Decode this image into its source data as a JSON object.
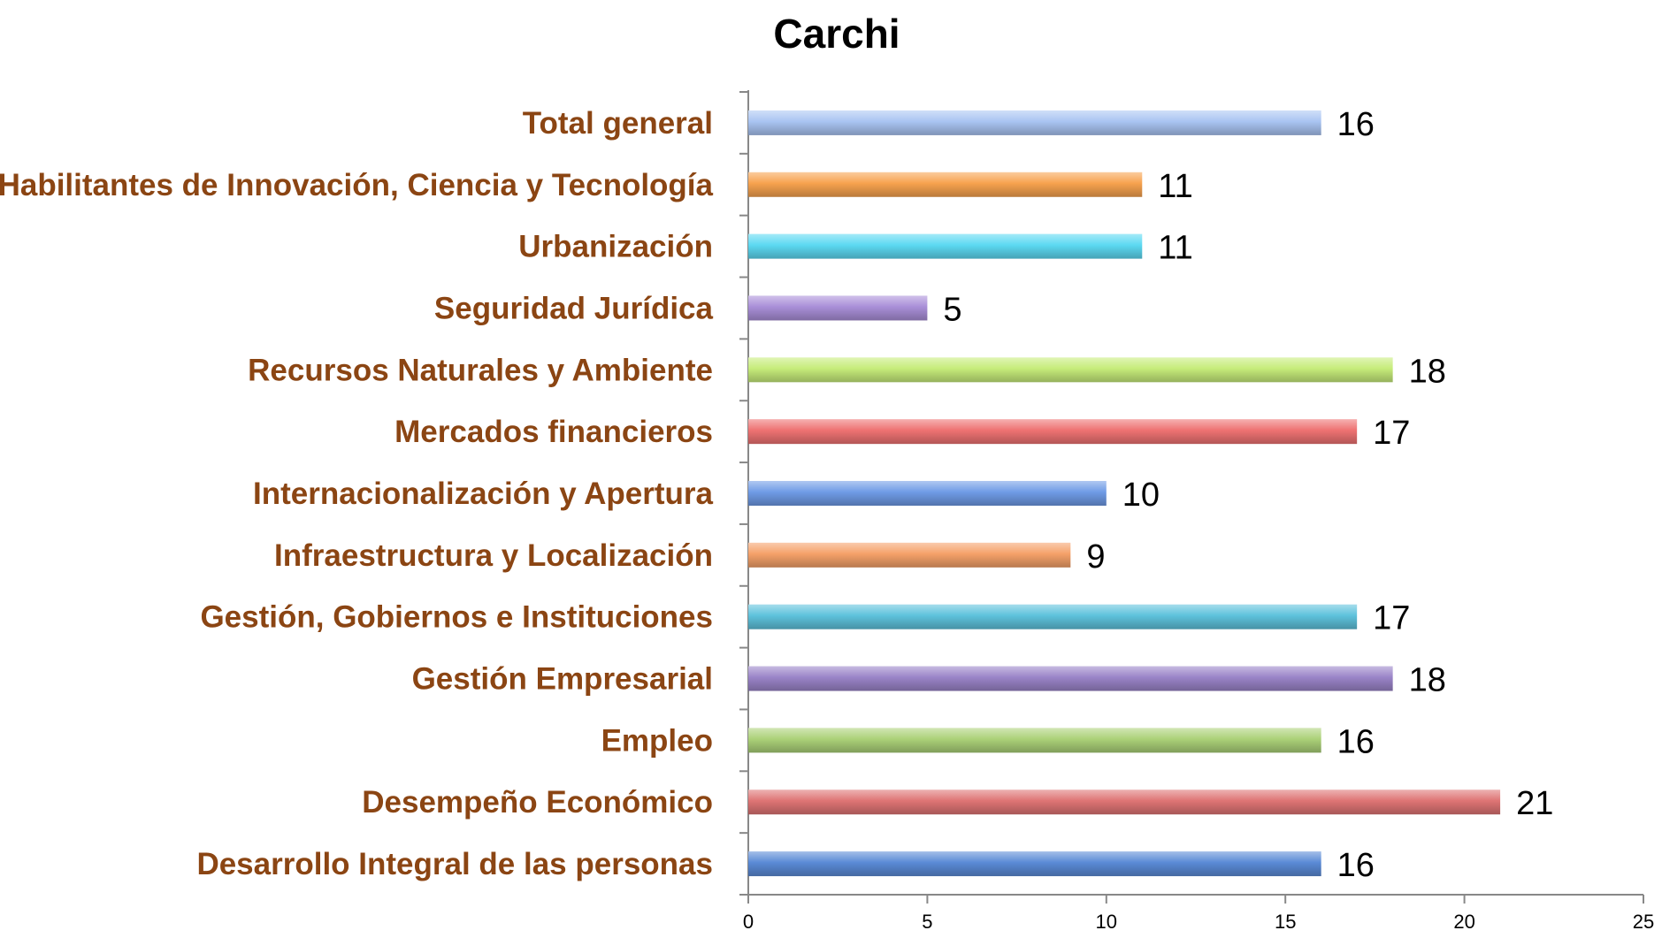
{
  "chart_data": {
    "type": "bar",
    "orientation": "horizontal",
    "title": "Carchi",
    "xlabel": "",
    "ylabel": "",
    "xlim": [
      0,
      25
    ],
    "x_ticks": [
      0,
      5,
      10,
      15,
      20,
      25
    ],
    "grid": false,
    "legend": "none",
    "categories": [
      "Total general",
      "Habilitantes de Innovación, Ciencia y Tecnología",
      "Urbanización",
      "Seguridad Jurídica",
      "Recursos Naturales y Ambiente",
      "Mercados financieros",
      "Internacionalización y Apertura",
      "Infraestructura y Localización",
      "Gestión, Gobiernos e Instituciones",
      "Gestión Empresarial",
      "Empleo",
      "Desempeño Económico",
      "Desarrollo Integral de las personas"
    ],
    "values": [
      16,
      11,
      11,
      5,
      18,
      17,
      10,
      9,
      17,
      18,
      16,
      21,
      16
    ],
    "colors": [
      "#A9C4F2",
      "#F7A24E",
      "#5CD9F2",
      "#A98FD8",
      "#C6EC7A",
      "#EE7272",
      "#6F9BE6",
      "#F5A169",
      "#5EC2DC",
      "#9A84C8",
      "#ABD178",
      "#DE7474",
      "#5A8AD6"
    ],
    "label_color": "#8B4513"
  }
}
